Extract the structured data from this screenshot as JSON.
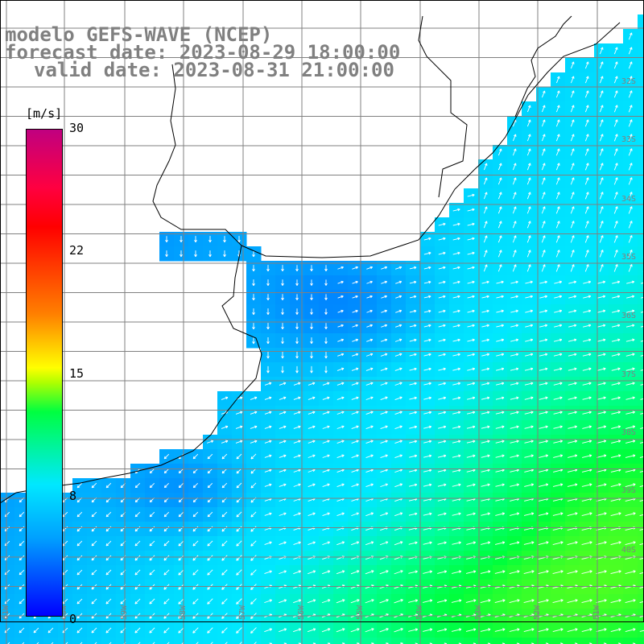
{
  "titles": {
    "model": "modelo GEFS-WAVE (NCEP)",
    "forecast": "forecast date: 2023-08-29 18:00:00",
    "valid": "valid date: 2023-08-31 21:00:00"
  },
  "colorbar": {
    "unit": "[m/s]",
    "ticks": [
      "30",
      "22",
      "15",
      "8",
      "0"
    ],
    "tick_values": [
      30,
      22,
      15,
      8,
      0
    ],
    "range": [
      0,
      30
    ],
    "colors": [
      "#0000ff",
      "#00a0ff",
      "#00e8ff",
      "#00ff40",
      "#b0ff00",
      "#ffff00",
      "#ff8000",
      "#ff0000",
      "#ff0040",
      "#c00080"
    ]
  },
  "grid": {
    "lat_labels": [
      "32S",
      "33S",
      "34S",
      "35S",
      "36S",
      "37S",
      "38S",
      "39S",
      "40S"
    ],
    "lon_labels": [
      "61W",
      "60W",
      "59W",
      "58W",
      "57W",
      "56W",
      "55W",
      "54W",
      "53W",
      "52W",
      "51W"
    ]
  },
  "field": {
    "variable": "wind speed",
    "land_color": "#ffffff",
    "gridline_color": "#808080"
  }
}
